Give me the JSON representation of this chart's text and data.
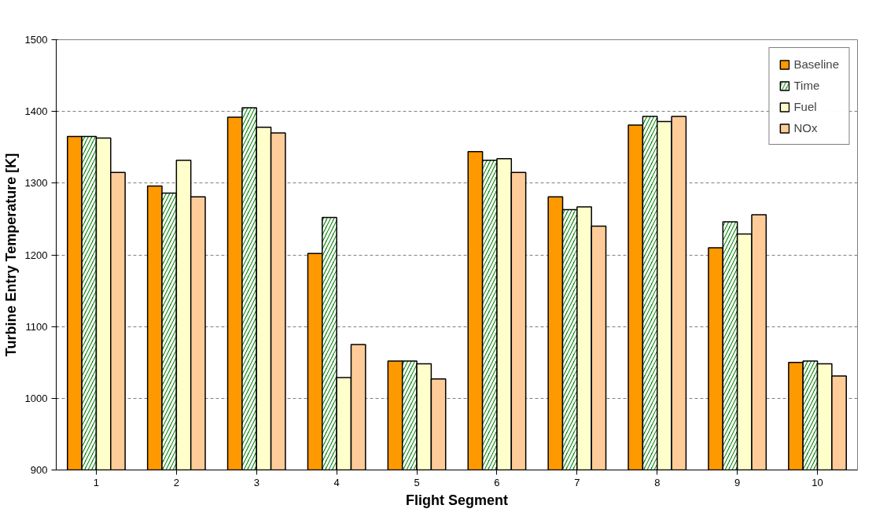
{
  "chart_data": {
    "type": "bar",
    "xlabel": "Flight Segment",
    "ylabel": "Turbine Entry Temperature [K]",
    "categories": [
      "1",
      "2",
      "3",
      "4",
      "5",
      "6",
      "7",
      "8",
      "9",
      "10"
    ],
    "series": [
      {
        "name": "Baseline",
        "color": "#ff9900",
        "values": [
          1365,
          1296,
          1392,
          1202,
          1052,
          1344,
          1281,
          1381,
          1210,
          1050
        ]
      },
      {
        "name": "Time",
        "color": "#008000",
        "values": [
          1365,
          1286,
          1405,
          1252,
          1052,
          1332,
          1263,
          1393,
          1246,
          1052
        ]
      },
      {
        "name": "Fuel",
        "color": "#ffffcc",
        "values": [
          1363,
          1332,
          1378,
          1029,
          1048,
          1334,
          1267,
          1386,
          1229,
          1048
        ]
      },
      {
        "name": "NOx",
        "color": "#ffcc99",
        "values": [
          1315,
          1281,
          1370,
          1075,
          1027,
          1315,
          1240,
          1393,
          1256,
          1031
        ]
      }
    ],
    "ylim": [
      900,
      1500
    ],
    "yticks": [
      900,
      1000,
      1100,
      1200,
      1300,
      1400,
      1500
    ],
    "grid": "y",
    "legend": "top right"
  }
}
